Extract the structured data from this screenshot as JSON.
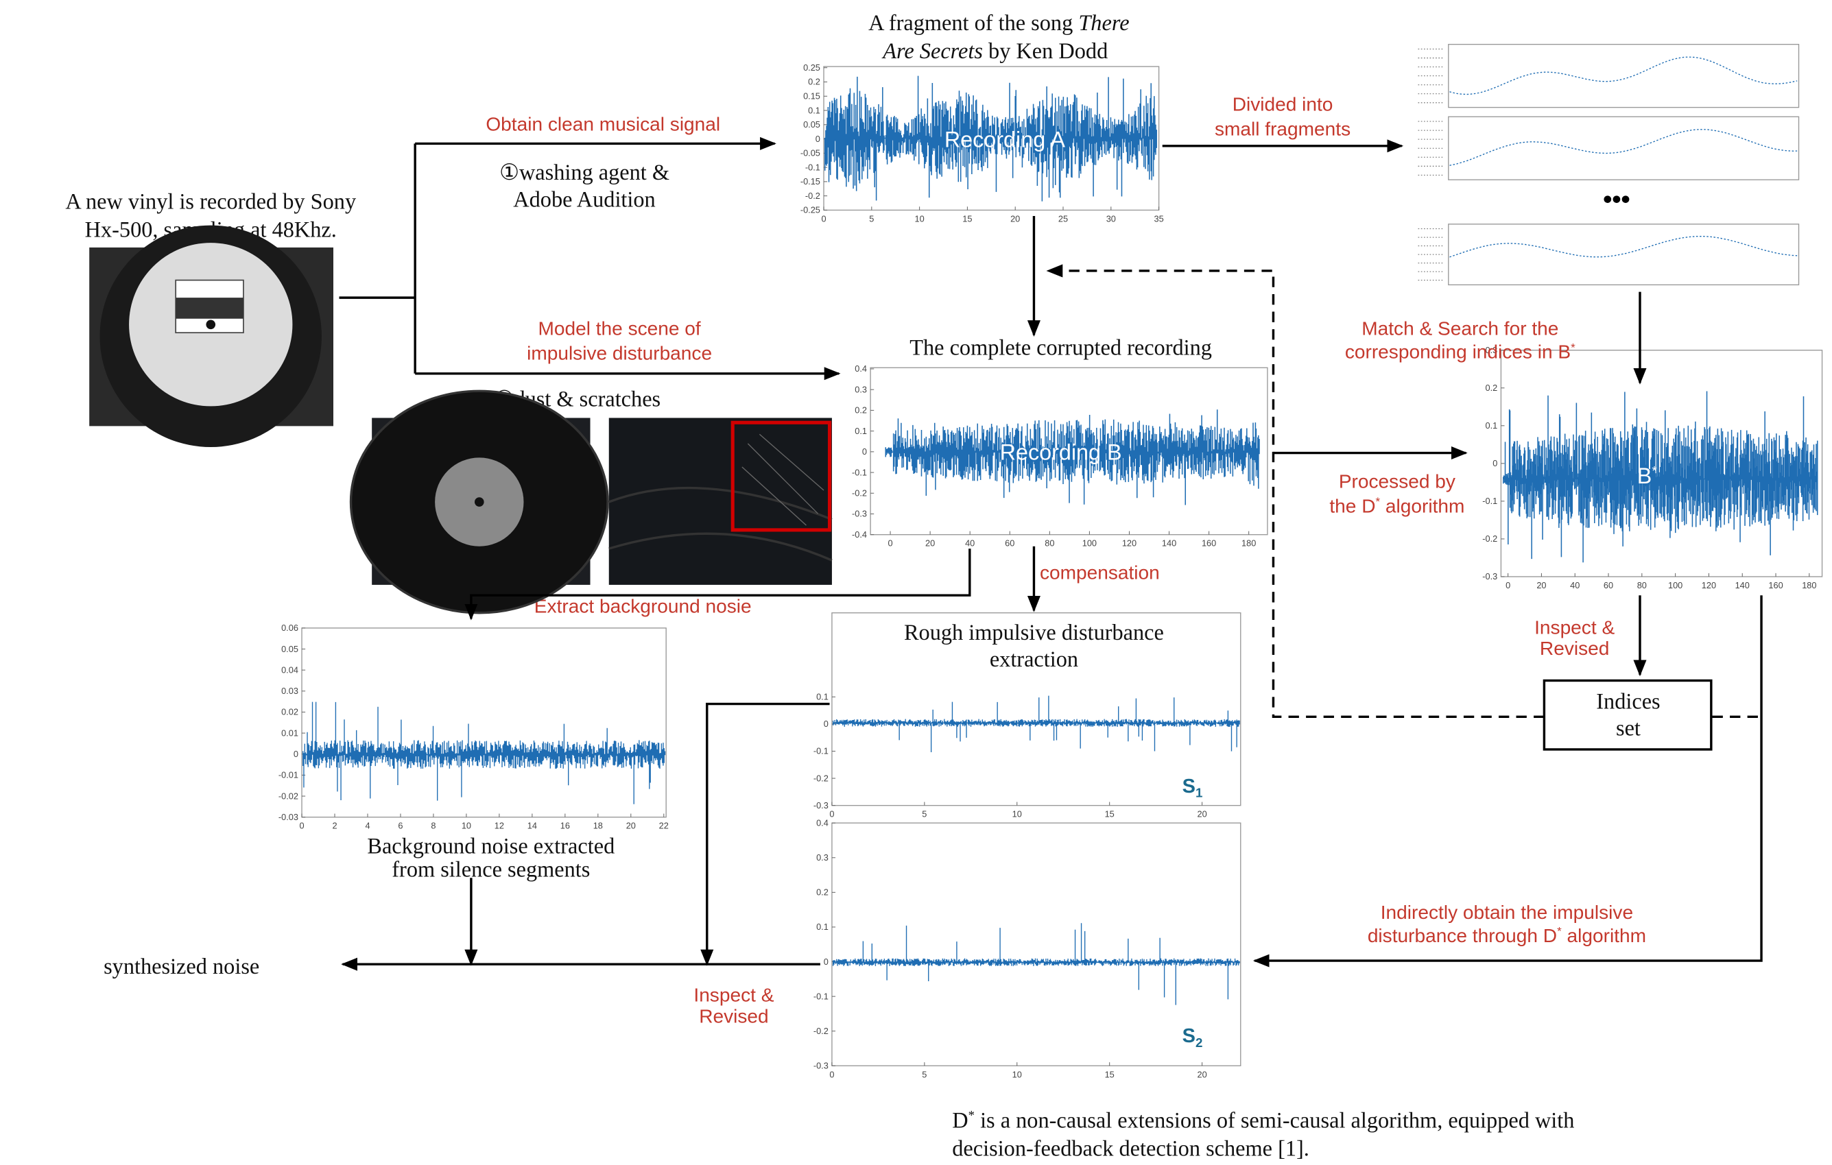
{
  "top_title": {
    "pre": "A fragment of the song ",
    "italic1": "There",
    "italic2": "Are Secrets",
    "post": " by Ken Dodd"
  },
  "vinyl_caption": [
    "A new vinyl is recorded by Sony",
    "Hx-500, sampling at 48Khz."
  ],
  "clean_label": "Obtain clean musical signal",
  "washing": [
    "①washing agent &",
    "Adobe Audition"
  ],
  "model_label": [
    "Model the scene of",
    "impulsive disturbance"
  ],
  "dust": "②dust & scratches",
  "divided": [
    "Divided into",
    "small fragments"
  ],
  "corrupted_title": "The complete corrupted recording",
  "match": {
    "line1": "Match & Search for the",
    "line2": "corresponding indices in B",
    "sup": "*"
  },
  "processed": {
    "line1": "Processed by",
    "line2a": "the D",
    "sup": "*",
    "line2b": " algorithm"
  },
  "compensation": "compensation",
  "extract": "Extract background nosie",
  "rough": [
    "Rough impulsive disturbance",
    "extraction"
  ],
  "inspect_right": [
    "Inspect &",
    "Revised"
  ],
  "inspect_left": [
    "Inspect &",
    "Revised"
  ],
  "indices": [
    "Indices",
    "set"
  ],
  "bg_caption": [
    "Background noise extracted",
    "from silence segments"
  ],
  "synth": "synthesized noise",
  "indirect": {
    "line1": "Indirectly obtain the impulsive",
    "line2a": "disturbance through D",
    "sup": "*",
    "line2b": " algorithm"
  },
  "footnote": {
    "d": "D",
    "sup": "*",
    "line1": " is a non-causal extensions of semi-causal algorithm, equipped with",
    "line2": "decision-feedback detection scheme  [1]."
  },
  "plots": {
    "rec_a": {
      "label": "Recording A",
      "yticks": [
        "0.25",
        "0.2",
        "0.15",
        "0.1",
        "0.05",
        "0",
        "-0.05",
        "-0.1",
        "-0.15",
        "-0.2",
        "-0.25"
      ],
      "xticks": [
        "0",
        "5",
        "10",
        "15",
        "20",
        "25",
        "30",
        "35"
      ]
    },
    "rec_b": {
      "label": "Recording B",
      "yticks": [
        "0.4",
        "0.3",
        "0.2",
        "0.1",
        "0",
        "-0.1",
        "-0.2",
        "-0.3",
        "-0.4"
      ],
      "xticks": [
        "0",
        "20",
        "40",
        "60",
        "80",
        "100",
        "120",
        "140",
        "160",
        "180"
      ]
    },
    "b_star": {
      "label": "B",
      "sup": "*",
      "yticks": [
        "0.3",
        "0.2",
        "0.1",
        "0",
        "-0.1",
        "-0.2",
        "-0.3"
      ],
      "xticks": [
        "0",
        "20",
        "40",
        "60",
        "80",
        "100",
        "120",
        "140",
        "160",
        "180"
      ]
    },
    "bg": {
      "yticks": [
        "0.06",
        "0.05",
        "0.04",
        "0.03",
        "0.02",
        "0.01",
        "0",
        "-0.01",
        "-0.02",
        "-0.03"
      ],
      "xticks": [
        "0",
        "2",
        "4",
        "6",
        "8",
        "10",
        "12",
        "14",
        "16",
        "18",
        "20",
        "22"
      ]
    },
    "s1": {
      "label": "S",
      "sub": "1",
      "yticks": [
        "0.1",
        "0",
        "-0.1",
        "-0.2",
        "-0.3"
      ],
      "xticks": [
        "0",
        "5",
        "10",
        "15",
        "20"
      ]
    },
    "s2": {
      "label": "S",
      "sub": "2",
      "yticks": [
        "0.4",
        "0.3",
        "0.2",
        "0.1",
        "0",
        "-0.1",
        "-0.2",
        "-0.3"
      ],
      "xticks": [
        "0",
        "5",
        "10",
        "15",
        "20"
      ]
    }
  }
}
